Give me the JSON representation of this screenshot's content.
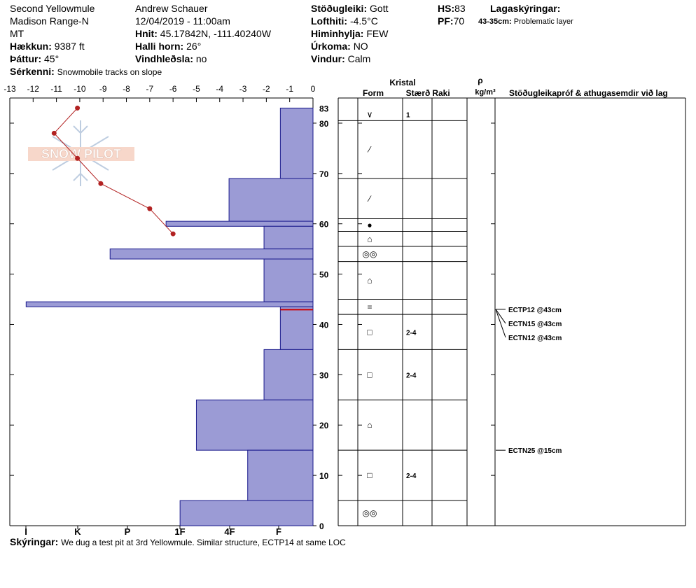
{
  "header": {
    "location": "Second Yellowmule",
    "range": "Madison Range-N",
    "state": "MT",
    "elevation_label": "Hækkun:",
    "elevation_value": "9387 ft",
    "aspect_label": "Þáttur:",
    "aspect_value": "45°",
    "observer": "Andrew Schauer",
    "datetime": "12/04/2019 - 11:00am",
    "coords_label": "Hnit:",
    "coords_value": "45.17842N, -111.40240W",
    "slope_label": "Halli horn:",
    "slope_value": "26°",
    "wind_loading_label": "Vindhleðsla:",
    "wind_loading_value": "no",
    "stability_label": "Stöðugleiki:",
    "stability_value": "Gott",
    "air_temp_label": "Lofthiti:",
    "air_temp_value": "-4.5°C",
    "sky_label": "Himinhylja:",
    "sky_value": "FEW",
    "precip_label": "Úrkoma:",
    "precip_value": "NO",
    "wind_label": "Vindur:",
    "wind_value": "Calm",
    "hs_label": "HS:",
    "hs_value": "83",
    "pf_label": "PF:",
    "pf_value": "70",
    "legend_title": "Lagaskýringar:",
    "legend_range": "43-35cm:",
    "legend_text": "Problematic layer",
    "features_label": "Sérkenni:",
    "features_value": "Snowmobile tracks on slope",
    "comments_label": "Skýringar:",
    "comments_value": "We dug a test pit at 3rd Yellowmule. Similar structure, ECTP14 at same LOC"
  },
  "logo_text": "SNOW PILOT",
  "columns": {
    "crystal": "Kristal",
    "form": "Form",
    "size": "Stærð",
    "moisture": "Raki",
    "rho": "ρ",
    "density_unit": "kg/m³",
    "tests_title": "Stöðugleikapróf & athugasemdir við lag"
  },
  "chart_data": {
    "type": "snow-profile",
    "depth_ylim": [
      0,
      85
    ],
    "depth_ticks": [
      0,
      10,
      20,
      30,
      40,
      50,
      60,
      70,
      80
    ],
    "top_tick": 83,
    "temp_xlim": [
      -13,
      0
    ],
    "temp_ticks": [
      "-13",
      "-12",
      "-11",
      "-10",
      "-9",
      "-8",
      "-7",
      "-6",
      "-5",
      "-4",
      "-3",
      "-2",
      "-1",
      "0"
    ],
    "hardness_ticks": [
      "I",
      "K",
      "P",
      "1F",
      "4F",
      "F"
    ],
    "colors": {
      "hardness_fill": "#9b9bd5",
      "hardness_stroke": "#1a1a8c",
      "temp_line": "#b22222",
      "problem_line": "#cc0000"
    },
    "hardness_layers": [
      {
        "top": 83,
        "bottom": 69,
        "temp_offset": 1.4
      },
      {
        "top": 69,
        "bottom": 60.5,
        "temp_offset": 3.6
      },
      {
        "top": 60.5,
        "bottom": 59.5,
        "temp_offset": 6.3
      },
      {
        "top": 59.5,
        "bottom": 55,
        "temp_offset": 2.1
      },
      {
        "top": 55,
        "bottom": 53,
        "temp_offset": 8.7
      },
      {
        "top": 53,
        "bottom": 44.5,
        "temp_offset": 2.1
      },
      {
        "top": 44.5,
        "bottom": 43.5,
        "temp_offset": 12.3
      },
      {
        "top": 43.5,
        "bottom": 35,
        "temp_offset": 1.4
      },
      {
        "top": 35,
        "bottom": 25,
        "temp_offset": 2.1
      },
      {
        "top": 25,
        "bottom": 15,
        "temp_offset": 5.0
      },
      {
        "top": 15,
        "bottom": 5,
        "temp_offset": 2.8
      },
      {
        "top": 5,
        "bottom": 0,
        "temp_offset": 5.7
      }
    ],
    "temperature_profile": [
      {
        "depth": 83,
        "temp": -10.1
      },
      {
        "depth": 78,
        "temp": -11.1
      },
      {
        "depth": 73,
        "temp": -10.1
      },
      {
        "depth": 68,
        "temp": -9.1
      },
      {
        "depth": 63,
        "temp": -7.0
      },
      {
        "depth": 58,
        "temp": -6.0
      }
    ],
    "problem_layer_depth": 43,
    "layers": [
      {
        "top": 83,
        "bottom": 80.5,
        "form": "∨",
        "size": "1"
      },
      {
        "top": 80.5,
        "bottom": 69,
        "form": "⁄",
        "size": ""
      },
      {
        "top": 69,
        "bottom": 61,
        "form": "⁄",
        "size": ""
      },
      {
        "top": 61,
        "bottom": 58.5,
        "form": "●",
        "size": ""
      },
      {
        "top": 58.5,
        "bottom": 55.5,
        "form": "⌂",
        "size": ""
      },
      {
        "top": 55.5,
        "bottom": 52.5,
        "form": "◎◎",
        "size": ""
      },
      {
        "top": 52.5,
        "bottom": 45,
        "form": "⌂",
        "size": ""
      },
      {
        "top": 45,
        "bottom": 42,
        "form": "=",
        "size": ""
      },
      {
        "top": 42,
        "bottom": 35,
        "form": "□",
        "size": "2-4"
      },
      {
        "top": 35,
        "bottom": 25,
        "form": "□",
        "size": "2-4"
      },
      {
        "top": 25,
        "bottom": 15,
        "form": "⌂",
        "size": ""
      },
      {
        "top": 15,
        "bottom": 5,
        "form": "□",
        "size": "2-4"
      },
      {
        "top": 5,
        "bottom": 0,
        "form": "◎◎",
        "size": ""
      }
    ],
    "tests": [
      {
        "label": "ECTP12 @43cm",
        "depth": 43
      },
      {
        "label": "ECTN15 @43cm",
        "depth": 43
      },
      {
        "label": "ECTN12 @43cm",
        "depth": 43
      },
      {
        "label": "ECTN25 @15cm",
        "depth": 15
      }
    ]
  }
}
